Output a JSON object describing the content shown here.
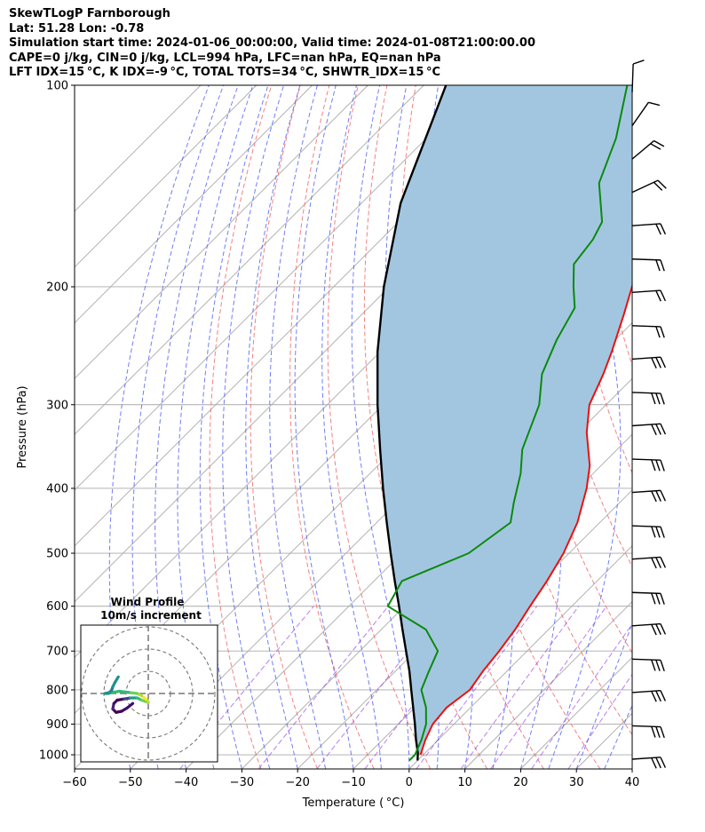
{
  "header": {
    "lines": [
      "SkewTLogP Farnborough",
      "Lat: 51.28   Lon: -0.78",
      "Simulation start time: 2024-01-06_00:00:00, Valid time: 2024-01-08T21:00:00.00",
      "CAPE=0 j/kg, CIN=0 j/kg, LCL=994 hPa, LFC=nan hPa, EQ=nan hPa",
      "LFT IDX=15 °C, K IDX=-9 °C, TOTAL TOTS=34 °C, SHWTR_IDX=15 °C"
    ]
  },
  "chart_data": {
    "type": "line",
    "subtype": "skew-t log-p",
    "xlabel": "Temperature ( °C)",
    "ylabel": "Pressure (hPa)",
    "xlim": [
      -60,
      40
    ],
    "ylim": [
      1050,
      100
    ],
    "y_scale": "log",
    "x_ticks": [
      "−60",
      "−50",
      "−40",
      "−30",
      "−20",
      "−10",
      "0",
      "10",
      "20",
      "30",
      "40"
    ],
    "y_ticks": [
      "100",
      "200",
      "300",
      "400",
      "500",
      "600",
      "700",
      "800",
      "900",
      "1000"
    ],
    "y_tick_values": [
      100,
      200,
      300,
      400,
      500,
      600,
      700,
      800,
      900,
      1000
    ],
    "grid": true,
    "colors": {
      "temperature": "#e8120f",
      "dewpoint": "#0a8a0a",
      "parcel": "#000000",
      "cape_fill": "#a3c6e0",
      "dry_adiabat": "#f36a6a",
      "moist_adiabat": "#4d5cf5",
      "mixing_ratio": "#8a2be2",
      "isotherm": "#aaaaaa"
    },
    "series": [
      {
        "key": "temperature",
        "points": [
          [
            1000,
            -0.5
          ],
          [
            950,
            -2.3
          ],
          [
            900,
            -3.8
          ],
          [
            850,
            -4.3
          ],
          [
            800,
            -3.3
          ],
          [
            750,
            -4.3
          ],
          [
            700,
            -5.0
          ],
          [
            650,
            -6.0
          ],
          [
            600,
            -7.5
          ],
          [
            550,
            -9.0
          ],
          [
            500,
            -11.0
          ],
          [
            450,
            -14.0
          ],
          [
            400,
            -18.5
          ],
          [
            370,
            -22.0
          ],
          [
            330,
            -28.5
          ],
          [
            300,
            -33.0
          ],
          [
            270,
            -36.0
          ],
          [
            250,
            -38.5
          ],
          [
            220,
            -43.0
          ],
          [
            200,
            -46.5
          ],
          [
            180,
            -50.5
          ],
          [
            160,
            -54.0
          ],
          [
            140,
            -58.0
          ],
          [
            125,
            -62.0
          ],
          [
            110,
            -66.5
          ],
          [
            100,
            -70.5
          ]
        ]
      },
      {
        "key": "dewpoint",
        "points": [
          [
            1020,
            -1.5
          ],
          [
            1000,
            -1.5
          ],
          [
            950,
            -3.0
          ],
          [
            900,
            -5.0
          ],
          [
            850,
            -8.0
          ],
          [
            800,
            -12.0
          ],
          [
            750,
            -14.0
          ],
          [
            700,
            -16.0
          ],
          [
            650,
            -22.0
          ],
          [
            600,
            -33.0
          ],
          [
            550,
            -35.0
          ],
          [
            500,
            -28.0
          ],
          [
            450,
            -26.0
          ],
          [
            420,
            -29.0
          ],
          [
            380,
            -33.0
          ],
          [
            350,
            -37.0
          ],
          [
            300,
            -42.0
          ],
          [
            270,
            -47.0
          ],
          [
            240,
            -50.5
          ],
          [
            215,
            -53.0
          ],
          [
            200,
            -57.0
          ],
          [
            185,
            -61.0
          ],
          [
            170,
            -62.0
          ],
          [
            160,
            -63.5
          ],
          [
            140,
            -71.0
          ],
          [
            120,
            -76.0
          ],
          [
            100,
            -83.5
          ]
        ]
      },
      {
        "key": "parcel",
        "points": [
          [
            1020,
            0.0
          ],
          [
            994,
            -1.3
          ],
          [
            950,
            -4.0
          ],
          [
            900,
            -7.0
          ],
          [
            850,
            -10.3
          ],
          [
            800,
            -13.8
          ],
          [
            750,
            -17.5
          ],
          [
            700,
            -21.7
          ],
          [
            650,
            -26.2
          ],
          [
            600,
            -31.0
          ],
          [
            550,
            -36.3
          ],
          [
            500,
            -42.0
          ],
          [
            450,
            -48.2
          ],
          [
            400,
            -55.0
          ],
          [
            350,
            -62.5
          ],
          [
            300,
            -71.0
          ],
          [
            250,
            -80.5
          ],
          [
            200,
            -91.0
          ],
          [
            150,
            -103.0
          ],
          [
            100,
            -116.0
          ]
        ]
      }
    ],
    "wind_barbs": {
      "count": 21,
      "description": "wind barbs along right edge from 100 to 1000 hPa"
    },
    "hodograph": {
      "title": "Wind Profile",
      "subtitle": "10m/s increment",
      "ring_increment_ms": 10,
      "points_uv": [
        [
          -7,
          -4.5
        ],
        [
          -9.5,
          -6.5
        ],
        [
          -12,
          -8
        ],
        [
          -14.5,
          -8.5
        ],
        [
          -16,
          -7
        ],
        [
          -15.5,
          -4.5
        ],
        [
          -14,
          -3
        ],
        [
          -11,
          -2.5
        ],
        [
          -8,
          -2
        ],
        [
          -5,
          -2
        ],
        [
          -3,
          -3
        ],
        [
          0,
          -4
        ],
        [
          -1,
          -2.5
        ],
        [
          -3,
          -1
        ],
        [
          -5,
          0
        ],
        [
          -9,
          0.5
        ],
        [
          -13,
          1
        ],
        [
          -16,
          0.5
        ],
        [
          -18,
          0
        ],
        [
          -19.5,
          0
        ],
        [
          -17.5,
          0.5
        ],
        [
          -16.5,
          1.5
        ],
        [
          -16,
          3
        ],
        [
          -15,
          5
        ],
        [
          -13.5,
          7.5
        ]
      ]
    }
  }
}
